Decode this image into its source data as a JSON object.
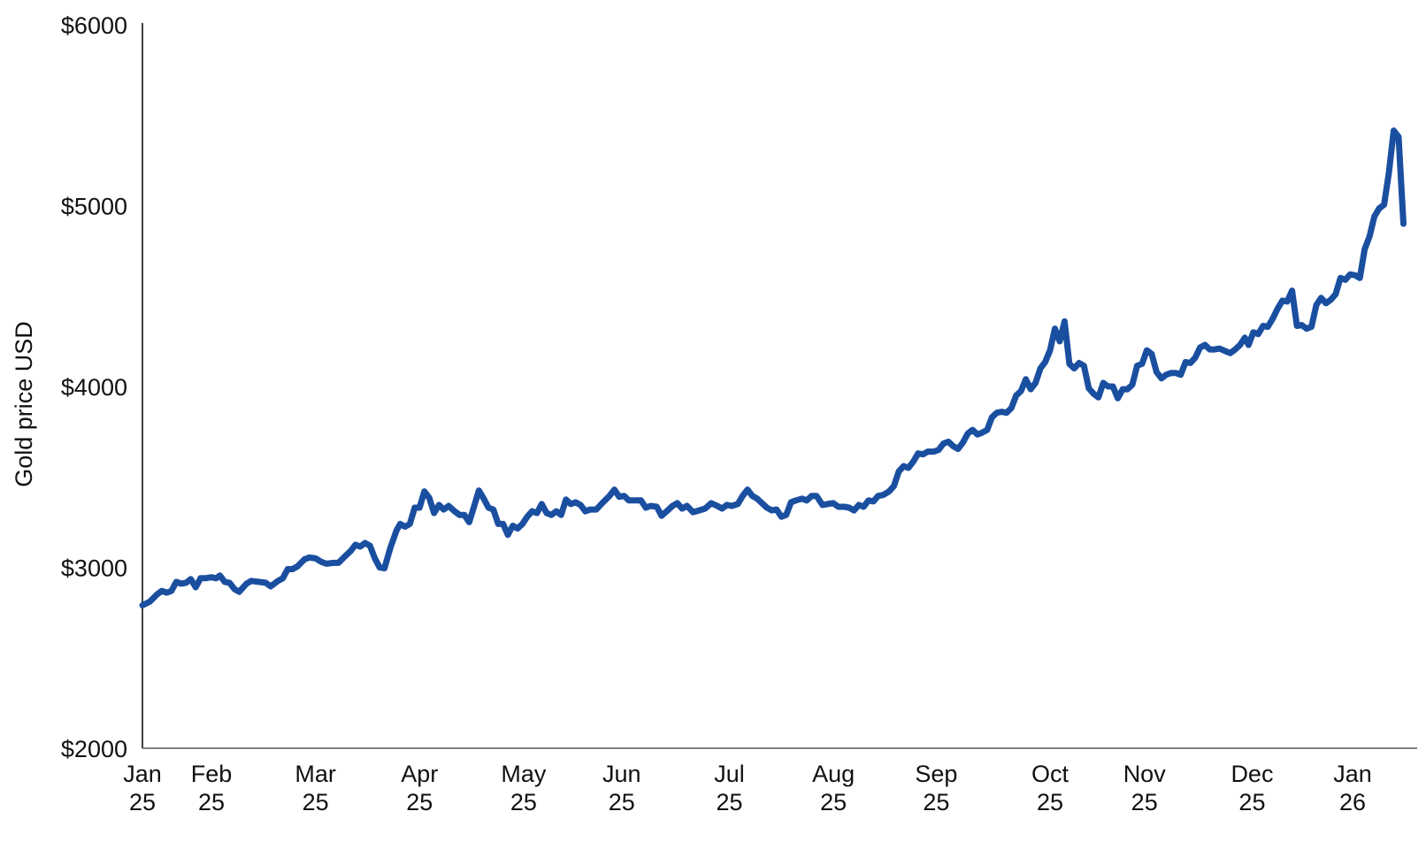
{
  "chart_data": {
    "type": "line",
    "title": "",
    "xlabel": "",
    "ylabel": "Gold price USD",
    "ylim": [
      2000,
      6000
    ],
    "grid": false,
    "legend": null,
    "y_ticks": [
      "$2000",
      "$3000",
      "$4000",
      "$5000",
      "$6000"
    ],
    "y_tick_values": [
      2000,
      3000,
      4000,
      5000,
      6000
    ],
    "x_ticks": [
      {
        "month": "Jan",
        "year": "25",
        "x": 0
      },
      {
        "month": "Feb",
        "year": "25",
        "x": 0.057
      },
      {
        "month": "Mar",
        "year": "25",
        "x": 0.143
      },
      {
        "month": "Apr",
        "year": "25",
        "x": 0.229
      },
      {
        "month": "May",
        "year": "25",
        "x": 0.315
      },
      {
        "month": "Jun",
        "year": "25",
        "x": 0.396
      },
      {
        "month": "Jul",
        "year": "25",
        "x": 0.485
      },
      {
        "month": "Aug",
        "year": "25",
        "x": 0.571
      },
      {
        "month": "Sep",
        "year": "25",
        "x": 0.656
      },
      {
        "month": "Oct",
        "year": "25",
        "x": 0.75
      },
      {
        "month": "Nov",
        "year": "25",
        "x": 0.828
      },
      {
        "month": "Dec",
        "year": "25",
        "x": 0.917
      },
      {
        "month": "Jan",
        "year": "26",
        "x": 1.0
      }
    ],
    "series": [
      {
        "name": "Gold price USD",
        "color": "#1a4fa0",
        "points": [
          [
            0.0,
            2790
          ],
          [
            0.006,
            2810
          ],
          [
            0.012,
            2850
          ],
          [
            0.016,
            2870
          ],
          [
            0.02,
            2860
          ],
          [
            0.024,
            2870
          ],
          [
            0.028,
            2920
          ],
          [
            0.032,
            2910
          ],
          [
            0.036,
            2915
          ],
          [
            0.04,
            2935
          ],
          [
            0.044,
            2890
          ],
          [
            0.048,
            2940
          ],
          [
            0.052,
            2940
          ],
          [
            0.057,
            2945
          ],
          [
            0.061,
            2940
          ],
          [
            0.064,
            2955
          ],
          [
            0.068,
            2920
          ],
          [
            0.072,
            2915
          ],
          [
            0.076,
            2880
          ],
          [
            0.08,
            2865
          ],
          [
            0.086,
            2910
          ],
          [
            0.09,
            2925
          ],
          [
            0.096,
            2920
          ],
          [
            0.102,
            2915
          ],
          [
            0.106,
            2895
          ],
          [
            0.112,
            2925
          ],
          [
            0.116,
            2940
          ],
          [
            0.12,
            2990
          ],
          [
            0.124,
            2990
          ],
          [
            0.128,
            3005
          ],
          [
            0.134,
            3045
          ],
          [
            0.138,
            3055
          ],
          [
            0.143,
            3050
          ],
          [
            0.148,
            3030
          ],
          [
            0.152,
            3020
          ],
          [
            0.158,
            3025
          ],
          [
            0.162,
            3025
          ],
          [
            0.168,
            3065
          ],
          [
            0.172,
            3090
          ],
          [
            0.176,
            3125
          ],
          [
            0.18,
            3115
          ],
          [
            0.184,
            3135
          ],
          [
            0.188,
            3120
          ],
          [
            0.192,
            3050
          ],
          [
            0.196,
            3000
          ],
          [
            0.2,
            2995
          ],
          [
            0.205,
            3110
          ],
          [
            0.21,
            3205
          ],
          [
            0.213,
            3240
          ],
          [
            0.217,
            3225
          ],
          [
            0.221,
            3240
          ],
          [
            0.225,
            3330
          ],
          [
            0.229,
            3330
          ],
          [
            0.233,
            3420
          ],
          [
            0.237,
            3385
          ],
          [
            0.241,
            3300
          ],
          [
            0.245,
            3345
          ],
          [
            0.249,
            3320
          ],
          [
            0.253,
            3340
          ],
          [
            0.258,
            3310
          ],
          [
            0.262,
            3290
          ],
          [
            0.266,
            3290
          ],
          [
            0.27,
            3250
          ],
          [
            0.274,
            3335
          ],
          [
            0.278,
            3425
          ],
          [
            0.282,
            3380
          ],
          [
            0.286,
            3330
          ],
          [
            0.29,
            3320
          ],
          [
            0.294,
            3240
          ],
          [
            0.298,
            3240
          ],
          [
            0.302,
            3180
          ],
          [
            0.306,
            3230
          ],
          [
            0.31,
            3215
          ],
          [
            0.314,
            3240
          ],
          [
            0.318,
            3280
          ],
          [
            0.322,
            3310
          ],
          [
            0.326,
            3300
          ],
          [
            0.33,
            3350
          ],
          [
            0.334,
            3300
          ],
          [
            0.338,
            3290
          ],
          [
            0.342,
            3310
          ],
          [
            0.346,
            3290
          ],
          [
            0.35,
            3375
          ],
          [
            0.354,
            3350
          ],
          [
            0.358,
            3360
          ],
          [
            0.362,
            3345
          ],
          [
            0.366,
            3310
          ],
          [
            0.37,
            3320
          ],
          [
            0.375,
            3320
          ],
          [
            0.38,
            3355
          ],
          [
            0.386,
            3395
          ],
          [
            0.39,
            3430
          ],
          [
            0.394,
            3390
          ],
          [
            0.398,
            3395
          ],
          [
            0.402,
            3370
          ],
          [
            0.406,
            3370
          ],
          [
            0.412,
            3370
          ],
          [
            0.416,
            3330
          ],
          [
            0.42,
            3340
          ],
          [
            0.425,
            3335
          ],
          [
            0.429,
            3285
          ],
          [
            0.434,
            3315
          ],
          [
            0.438,
            3340
          ],
          [
            0.442,
            3355
          ],
          [
            0.446,
            3325
          ],
          [
            0.45,
            3340
          ],
          [
            0.455,
            3305
          ],
          [
            0.46,
            3315
          ],
          [
            0.465,
            3325
          ],
          [
            0.47,
            3355
          ],
          [
            0.475,
            3340
          ],
          [
            0.479,
            3325
          ],
          [
            0.483,
            3345
          ],
          [
            0.487,
            3340
          ],
          [
            0.492,
            3350
          ],
          [
            0.496,
            3395
          ],
          [
            0.5,
            3430
          ],
          [
            0.504,
            3395
          ],
          [
            0.508,
            3380
          ],
          [
            0.512,
            3355
          ],
          [
            0.516,
            3330
          ],
          [
            0.52,
            3315
          ],
          [
            0.524,
            3320
          ],
          [
            0.528,
            3280
          ],
          [
            0.532,
            3290
          ],
          [
            0.536,
            3360
          ],
          [
            0.54,
            3370
          ],
          [
            0.545,
            3380
          ],
          [
            0.549,
            3370
          ],
          [
            0.553,
            3395
          ],
          [
            0.557,
            3395
          ],
          [
            0.562,
            3345
          ],
          [
            0.566,
            3350
          ],
          [
            0.571,
            3355
          ],
          [
            0.575,
            3335
          ],
          [
            0.58,
            3335
          ],
          [
            0.584,
            3330
          ],
          [
            0.588,
            3315
          ],
          [
            0.592,
            3345
          ],
          [
            0.596,
            3335
          ],
          [
            0.6,
            3370
          ],
          [
            0.604,
            3365
          ],
          [
            0.608,
            3395
          ],
          [
            0.612,
            3400
          ],
          [
            0.617,
            3420
          ],
          [
            0.621,
            3450
          ],
          [
            0.625,
            3530
          ],
          [
            0.629,
            3560
          ],
          [
            0.633,
            3550
          ],
          [
            0.637,
            3585
          ],
          [
            0.641,
            3630
          ],
          [
            0.645,
            3625
          ],
          [
            0.649,
            3640
          ],
          [
            0.654,
            3640
          ],
          [
            0.658,
            3650
          ],
          [
            0.662,
            3685
          ],
          [
            0.666,
            3695
          ],
          [
            0.67,
            3670
          ],
          [
            0.674,
            3655
          ],
          [
            0.678,
            3690
          ],
          [
            0.682,
            3740
          ],
          [
            0.686,
            3760
          ],
          [
            0.69,
            3735
          ],
          [
            0.694,
            3745
          ],
          [
            0.698,
            3760
          ],
          [
            0.702,
            3830
          ],
          [
            0.706,
            3855
          ],
          [
            0.71,
            3860
          ],
          [
            0.714,
            3855
          ],
          [
            0.718,
            3880
          ],
          [
            0.722,
            3950
          ],
          [
            0.726,
            3975
          ],
          [
            0.73,
            4040
          ],
          [
            0.734,
            3985
          ],
          [
            0.738,
            4020
          ],
          [
            0.742,
            4100
          ],
          [
            0.746,
            4135
          ],
          [
            0.75,
            4200
          ],
          [
            0.754,
            4320
          ],
          [
            0.758,
            4250
          ],
          [
            0.762,
            4360
          ],
          [
            0.766,
            4125
          ],
          [
            0.77,
            4100
          ],
          [
            0.774,
            4130
          ],
          [
            0.778,
            4115
          ],
          [
            0.782,
            3990
          ],
          [
            0.786,
            3960
          ],
          [
            0.79,
            3940
          ],
          [
            0.794,
            4020
          ],
          [
            0.798,
            4000
          ],
          [
            0.802,
            4000
          ],
          [
            0.806,
            3935
          ],
          [
            0.81,
            3985
          ],
          [
            0.814,
            3985
          ],
          [
            0.818,
            4010
          ],
          [
            0.822,
            4115
          ],
          [
            0.826,
            4125
          ],
          [
            0.83,
            4200
          ],
          [
            0.834,
            4180
          ],
          [
            0.838,
            4080
          ],
          [
            0.842,
            4045
          ],
          [
            0.846,
            4065
          ],
          [
            0.85,
            4075
          ],
          [
            0.854,
            4075
          ],
          [
            0.858,
            4065
          ],
          [
            0.862,
            4135
          ],
          [
            0.866,
            4130
          ],
          [
            0.87,
            4160
          ],
          [
            0.874,
            4215
          ],
          [
            0.878,
            4230
          ],
          [
            0.882,
            4205
          ],
          [
            0.886,
            4205
          ],
          [
            0.89,
            4210
          ],
          [
            0.895,
            4195
          ],
          [
            0.899,
            4185
          ],
          [
            0.903,
            4205
          ],
          [
            0.907,
            4230
          ],
          [
            0.911,
            4270
          ],
          [
            0.914,
            4230
          ],
          [
            0.918,
            4300
          ],
          [
            0.922,
            4290
          ],
          [
            0.926,
            4335
          ],
          [
            0.93,
            4330
          ],
          [
            0.934,
            4375
          ],
          [
            0.938,
            4430
          ],
          [
            0.942,
            4475
          ],
          [
            0.946,
            4470
          ],
          [
            0.95,
            4530
          ],
          [
            0.954,
            4335
          ],
          [
            0.958,
            4340
          ],
          [
            0.962,
            4320
          ],
          [
            0.966,
            4330
          ],
          [
            0.97,
            4450
          ],
          [
            0.974,
            4490
          ],
          [
            0.978,
            4460
          ],
          [
            0.982,
            4480
          ],
          [
            0.986,
            4510
          ],
          [
            0.99,
            4600
          ],
          [
            0.994,
            4590
          ],
          [
            0.998,
            4620
          ],
          [
            1.002,
            4615
          ],
          [
            1.006,
            4600
          ],
          [
            1.01,
            4760
          ],
          [
            1.014,
            4830
          ],
          [
            1.018,
            4940
          ],
          [
            1.022,
            4985
          ],
          [
            1.026,
            5005
          ],
          [
            1.03,
            5180
          ],
          [
            1.034,
            5415
          ],
          [
            1.038,
            5380
          ],
          [
            1.042,
            4900
          ]
        ]
      }
    ]
  }
}
